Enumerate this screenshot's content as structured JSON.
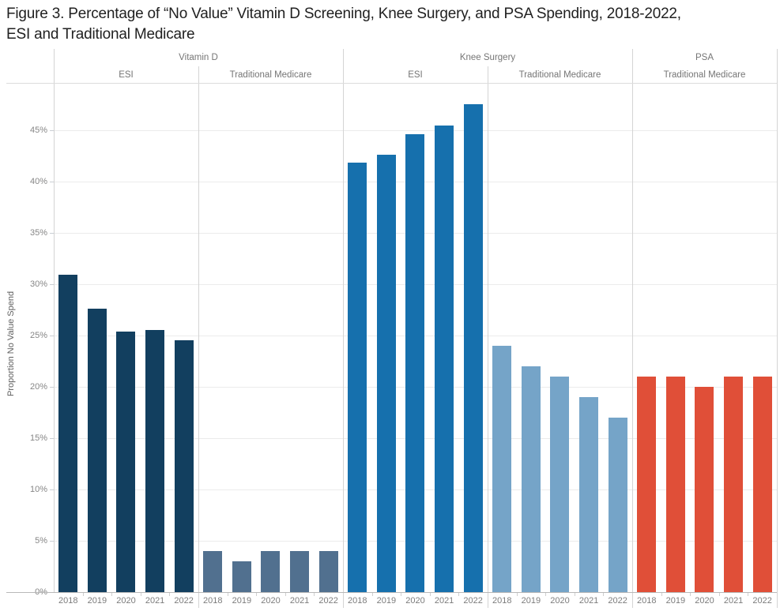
{
  "chart_data": {
    "type": "bar",
    "title": "Figure 3. Percentage of “No Value” Vitamin D Screening, Knee Surgery, and PSA Spending, 2018-2022,\nESI and Traditional Medicare",
    "ylabel": "Proportion No Value Spend",
    "x_years": [
      "2018",
      "2019",
      "2020",
      "2021",
      "2022"
    ],
    "y_tick_labels": [
      "0%",
      "5%",
      "10%",
      "15%",
      "20%",
      "25%",
      "30%",
      "35%",
      "40%",
      "45%"
    ],
    "y_tick_values": [
      0,
      5,
      10,
      15,
      20,
      25,
      30,
      35,
      40,
      45
    ],
    "ylim": [
      0,
      49.5
    ],
    "grid": true,
    "legend": "none",
    "service_groups": [
      {
        "label": "Vitamin D",
        "span": 2
      },
      {
        "label": "Knee Surgery",
        "span": 2
      },
      {
        "label": "PSA",
        "span": 1
      }
    ],
    "series": [
      {
        "service": "Vitamin D",
        "payer": "ESI",
        "color": "#123f5f",
        "values": [
          30.9,
          27.6,
          25.4,
          25.5,
          24.5
        ]
      },
      {
        "service": "Vitamin D",
        "payer": "Traditional Medicare",
        "color": "#51708f",
        "values": [
          4.0,
          3.0,
          4.0,
          4.0,
          4.0
        ]
      },
      {
        "service": "Knee Surgery",
        "payer": "ESI",
        "color": "#1670ad",
        "values": [
          41.8,
          42.6,
          44.6,
          45.4,
          47.5
        ]
      },
      {
        "service": "Knee Surgery",
        "payer": "Traditional Medicare",
        "color": "#75a4c8",
        "values": [
          24.0,
          22.0,
          21.0,
          19.0,
          17.0
        ]
      },
      {
        "service": "PSA",
        "payer": "Traditional Medicare",
        "color": "#e04f38",
        "values": [
          21.0,
          21.0,
          20.0,
          21.0,
          21.0
        ]
      }
    ]
  }
}
